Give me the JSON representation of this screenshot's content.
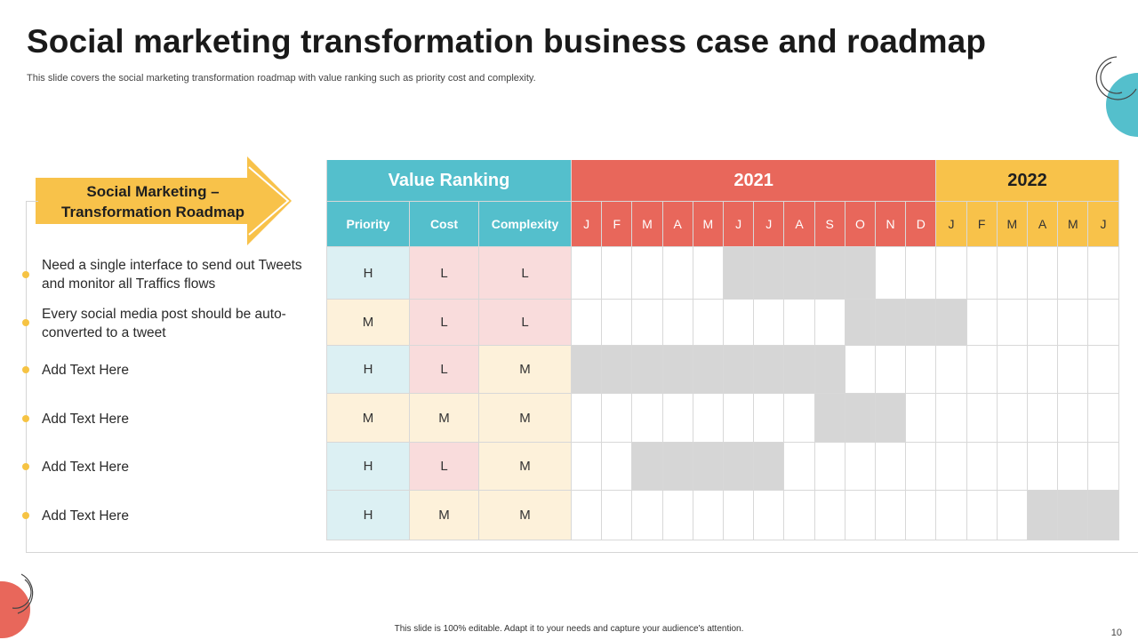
{
  "header": {
    "title": "Social marketing transformation business case and roadmap",
    "subtitle": "This slide covers the social marketing transformation roadmap with value ranking such as priority cost and complexity."
  },
  "arrow": {
    "line1": "Social Marketing –",
    "line2": "Transformation Roadmap"
  },
  "colors": {
    "value_header": "#54bfcc",
    "year2021": "#e8675b",
    "year2022": "#f8c24a",
    "bullet": "#f6c343",
    "shaded": "#d6d6d6",
    "priority_bg": "#dcf0f3",
    "pink_bg": "#f9dcdc",
    "cream_bg": "#fdf1da"
  },
  "table": {
    "value_header": "Value Ranking",
    "years": [
      "2021",
      "2022"
    ],
    "columns": [
      "Priority",
      "Cost",
      "Complexity"
    ],
    "months_2021": [
      "J",
      "F",
      "M",
      "A",
      "M",
      "J",
      "J",
      "A",
      "S",
      "O",
      "N",
      "D"
    ],
    "months_2022": [
      "J",
      "F",
      "M",
      "A",
      "M",
      "J"
    ]
  },
  "tasks": [
    {
      "text": "Need a single interface to send out Tweets and monitor all Traffics flows",
      "priority": "H",
      "cost": "L",
      "complexity": "L",
      "shaded_months": [
        6,
        7,
        8,
        9,
        10
      ]
    },
    {
      "text": "Every social media post should be auto-converted to a tweet",
      "priority": "M",
      "cost": "L",
      "complexity": "L",
      "shaded_months": [
        10,
        11,
        12,
        13
      ]
    },
    {
      "text": "Add Text Here",
      "priority": "H",
      "cost": "L",
      "complexity": "M",
      "shaded_months": [
        1,
        2,
        3,
        4,
        5,
        6,
        7,
        8,
        9
      ]
    },
    {
      "text": "Add Text Here",
      "priority": "M",
      "cost": "M",
      "complexity": "M",
      "shaded_months": [
        9,
        10,
        11
      ]
    },
    {
      "text": "Add Text Here",
      "priority": "H",
      "cost": "L",
      "complexity": "M",
      "shaded_months": [
        3,
        4,
        5,
        6,
        7
      ]
    },
    {
      "text": "Add Text Here",
      "priority": "H",
      "cost": "M",
      "complexity": "M",
      "shaded_months": [
        16,
        17,
        18
      ]
    }
  ],
  "footer": {
    "note": "This slide is 100% editable. Adapt it to your needs and capture your audience's attention.",
    "page_number": "10"
  }
}
